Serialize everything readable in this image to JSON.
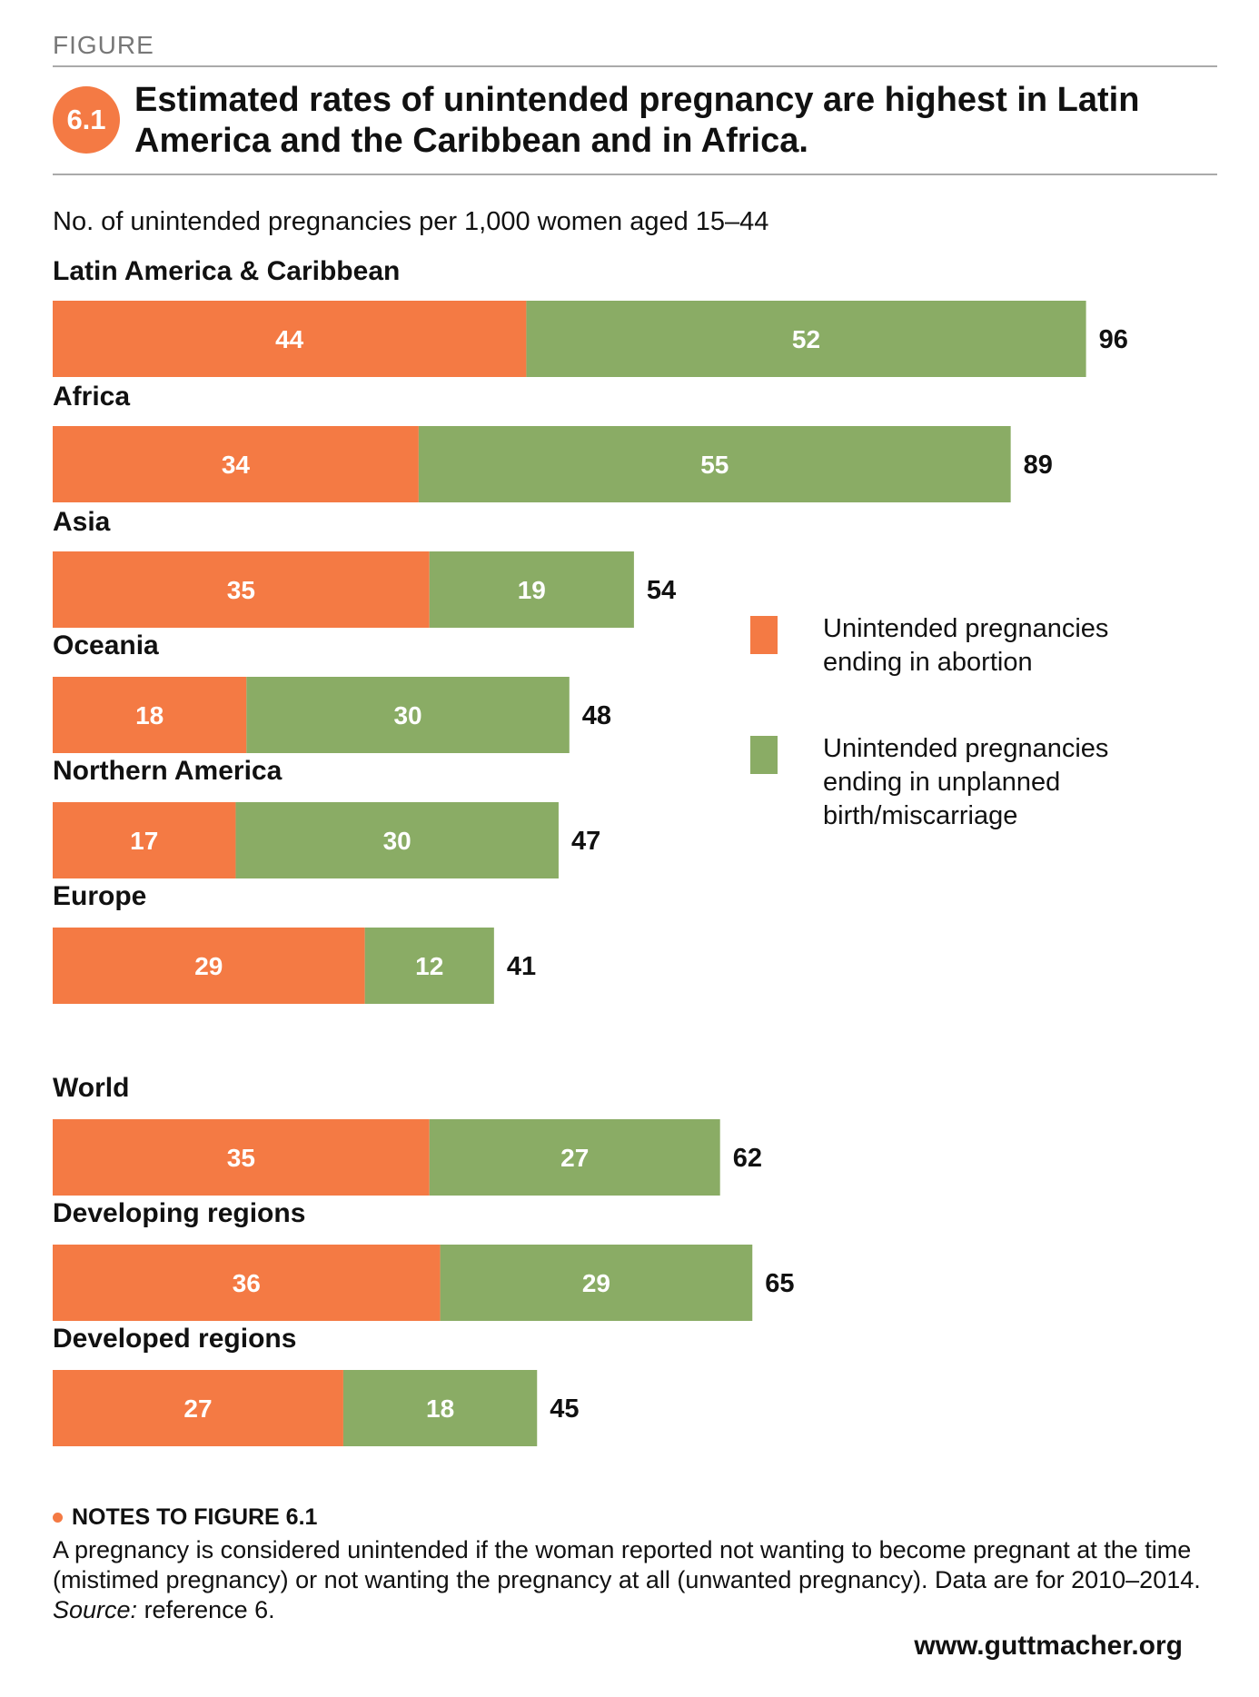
{
  "header": {
    "kicker": "FIGURE",
    "figure_number": "6.1",
    "title": "Estimated rates of unintended pregnancy are highest in Latin America and the Caribbean and in Africa."
  },
  "colors": {
    "abortion": "#f47a44",
    "birth": "#8aac65",
    "accent": "#f47a44",
    "rule": "#aaaaaa"
  },
  "chart_data": {
    "type": "bar",
    "orientation": "horizontal",
    "stacked": true,
    "subtitle": "No. of unintended pregnancies per 1,000 women aged 15–44",
    "categories": [
      "Latin America & Caribbean",
      "Africa",
      "Asia",
      "Oceania",
      "Northern America",
      "Europe",
      "World",
      "Developing regions",
      "Developed regions"
    ],
    "series": [
      {
        "name": "Unintended pregnancies ending in abortion",
        "values": [
          44,
          34,
          35,
          18,
          17,
          29,
          35,
          36,
          27
        ]
      },
      {
        "name": "Unintended pregnancies ending in unplanned birth/miscarriage",
        "values": [
          52,
          55,
          19,
          30,
          30,
          12,
          27,
          29,
          18
        ]
      }
    ],
    "totals": [
      "96",
      "89",
      "54",
      "48",
      "47",
      "41",
      "62",
      "65",
      "45"
    ],
    "xlim": [
      0,
      96
    ],
    "grid": false,
    "legend_position": "right"
  },
  "legend": {
    "abortion_label": "Unintended pregnancies ending in abortion",
    "birth_label": "Unintended pregnancies ending in unplanned birth/miscarriage"
  },
  "notes": {
    "heading": "NOTES TO FIGURE 6.1",
    "text_main": "A pregnancy is considered unintended if the woman reported not wanting to become pregnant at the time (mistimed pregnancy) or not wanting the pregnancy at all (unwanted pregnancy). Data are for 2010–2014. ",
    "source_label": "Source:",
    "source_text": " reference 6."
  },
  "footer": {
    "url": "www.guttmacher.org"
  }
}
